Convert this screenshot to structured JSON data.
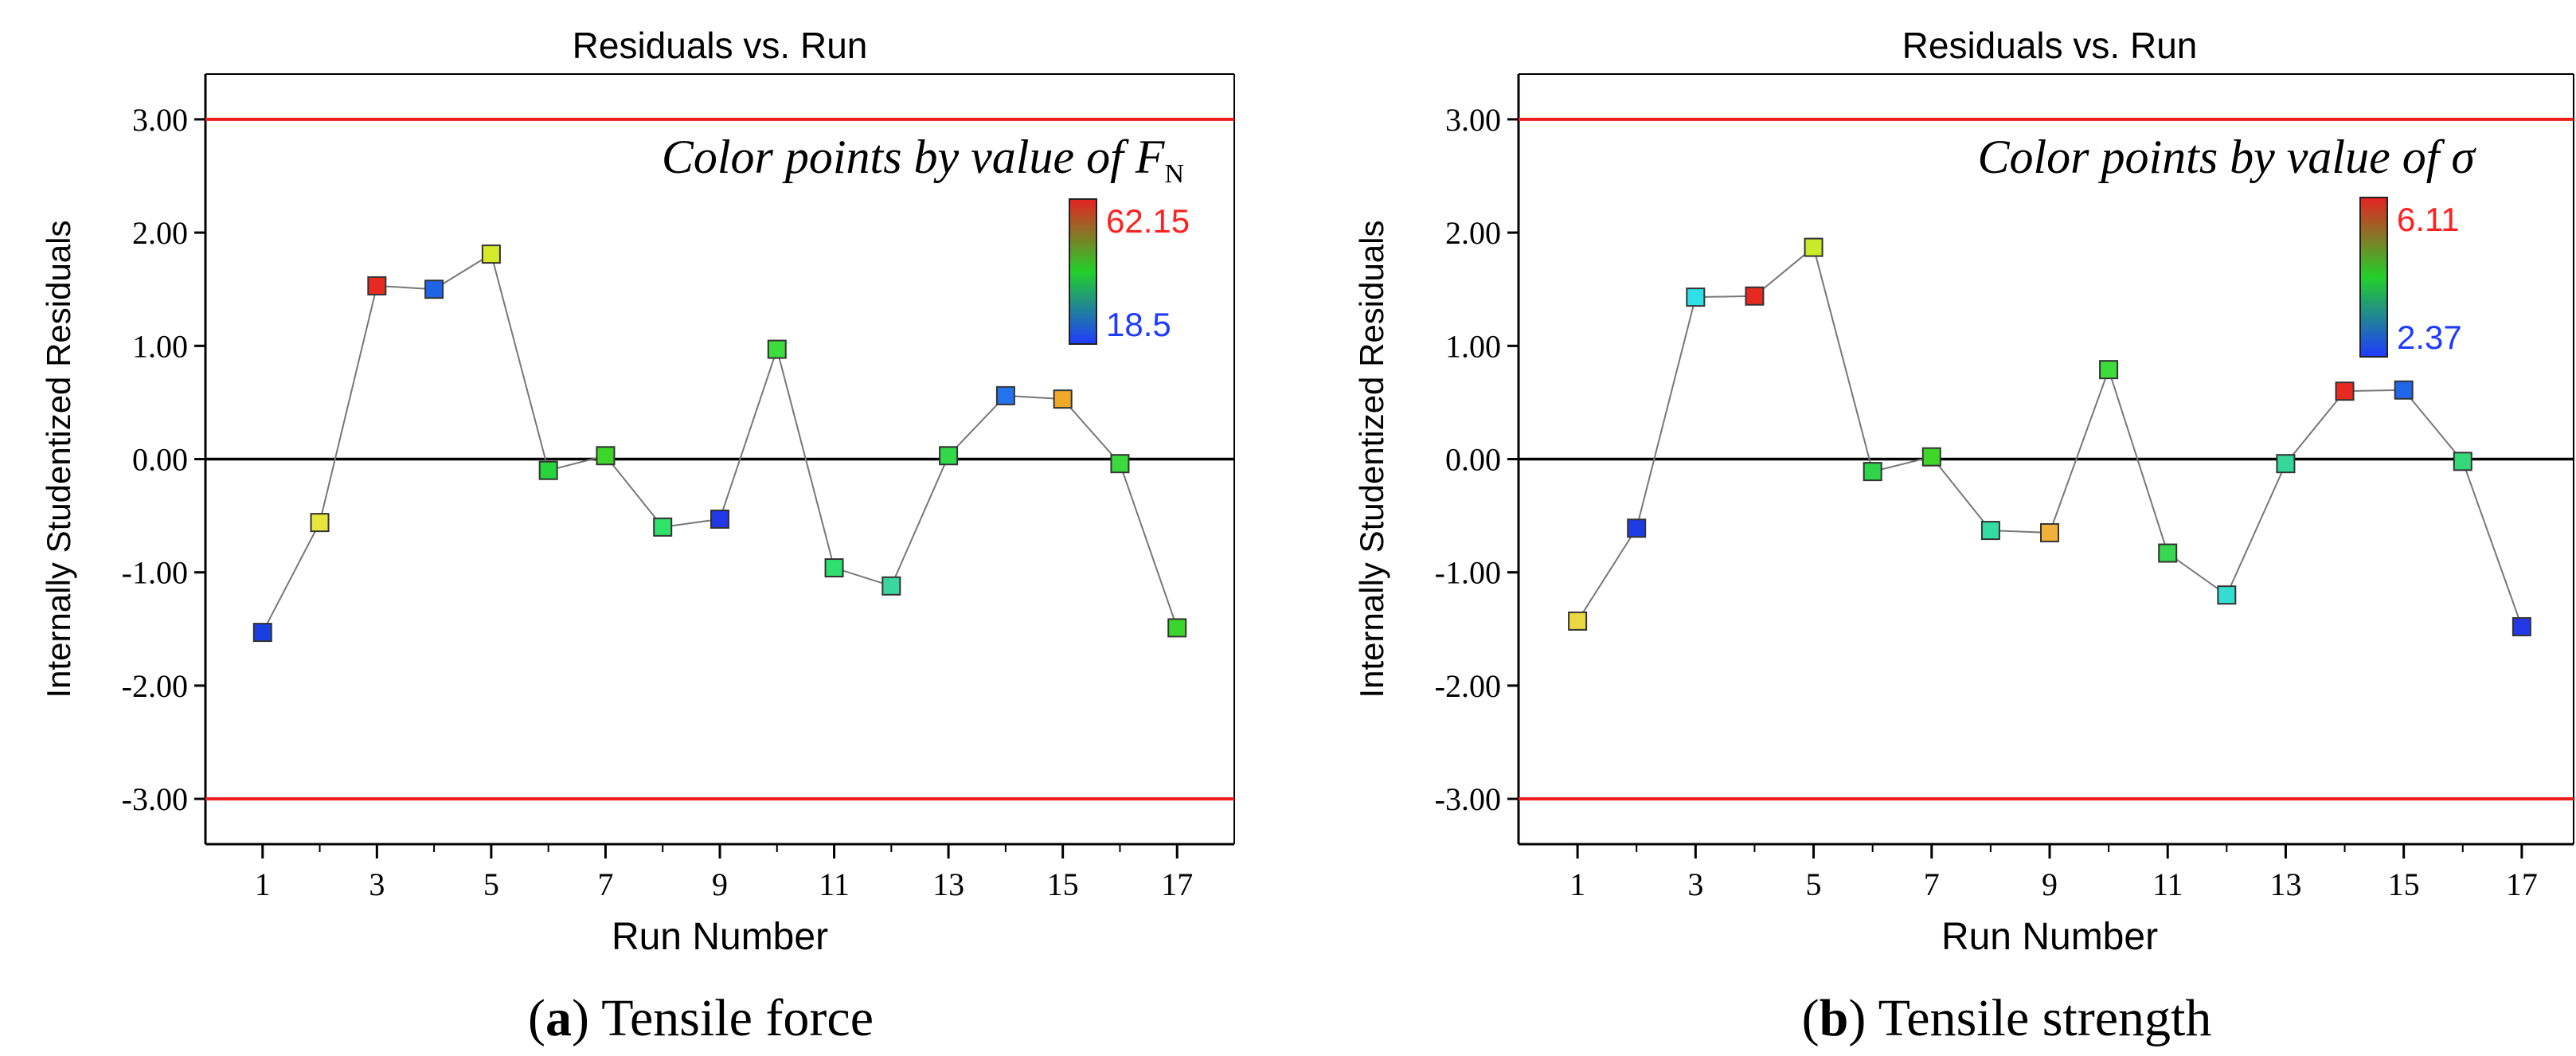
{
  "colors": {
    "limit_line": "#ee1c1c",
    "zero_line": "#000000",
    "connector": "#777777",
    "axis": "#000000",
    "scale_high_label": "#ff2020",
    "scale_low_label": "#1f3bff",
    "caption_text": "#000000"
  },
  "chart_data": [
    {
      "type": "scatter",
      "title": "Residuals vs. Run",
      "xlabel": "Run Number",
      "ylabel": "Internally Studentized Residuals",
      "xlim": [
        0,
        18
      ],
      "ylim": [
        -3.4,
        3.4
      ],
      "x_ticks": [
        1,
        3,
        5,
        7,
        9,
        11,
        13,
        15,
        17
      ],
      "x_minor_ticks": [
        2,
        4,
        6,
        8,
        10,
        12,
        14,
        16
      ],
      "y_ticks": [
        3,
        2,
        1,
        0,
        -1,
        -2,
        -3
      ],
      "y_tick_labels": [
        "3.00",
        "2.00",
        "1.00",
        "0.00",
        "-1.00",
        "-2.00",
        "-3.00"
      ],
      "limit_lines": [
        3.0,
        -3.0
      ],
      "zero_line": 0.0,
      "annotation": {
        "prefix": "Color points by value of ",
        "symbol": "F",
        "subscript": "N"
      },
      "color_scale": {
        "high_label": "62.15",
        "low_label": "18.5",
        "min": 18.5,
        "max": 62.15
      },
      "series": [
        {
          "name": "Residuals",
          "x": [
            1,
            2,
            3,
            4,
            5,
            6,
            7,
            8,
            9,
            10,
            11,
            12,
            13,
            14,
            15,
            16,
            17
          ],
          "y": [
            -1.53,
            -0.56,
            1.53,
            1.5,
            1.81,
            -0.1,
            0.03,
            -0.6,
            -0.53,
            0.97,
            -0.96,
            -1.12,
            0.03,
            0.56,
            0.53,
            -0.04,
            -1.49
          ],
          "colors": [
            "#1a3fe0",
            "#e6e63c",
            "#e62a22",
            "#1f63e6",
            "#d5ea2a",
            "#26d43c",
            "#3ed628",
            "#2ee26a",
            "#2238e6",
            "#3cdc3c",
            "#2fe06f",
            "#3ad6a0",
            "#32da4a",
            "#2472ec",
            "#f0aa28",
            "#3bdb40",
            "#3ad62c"
          ]
        }
      ],
      "caption": {
        "letter": "a",
        "text": "Tensile force"
      }
    },
    {
      "type": "scatter",
      "title": "Residuals vs. Run",
      "xlabel": "Run Number",
      "ylabel": "Internally Studentized Residuals",
      "xlim": [
        0,
        18
      ],
      "ylim": [
        -3.4,
        3.4
      ],
      "x_ticks": [
        1,
        3,
        5,
        7,
        9,
        11,
        13,
        15,
        17
      ],
      "x_minor_ticks": [
        2,
        4,
        6,
        8,
        10,
        12,
        14,
        16
      ],
      "y_ticks": [
        3,
        2,
        1,
        0,
        -1,
        -2,
        -3
      ],
      "y_tick_labels": [
        "3.00",
        "2.00",
        "1.00",
        "0.00",
        "-1.00",
        "-2.00",
        "-3.00"
      ],
      "limit_lines": [
        3.0,
        -3.0
      ],
      "zero_line": 0.0,
      "annotation": {
        "prefix": "Color points by value of ",
        "symbol": "σ",
        "subscript": ""
      },
      "color_scale": {
        "high_label": "6.11",
        "low_label": "2.37",
        "min": 2.37,
        "max": 6.11
      },
      "series": [
        {
          "name": "Residuals",
          "x": [
            1,
            2,
            3,
            4,
            5,
            6,
            7,
            8,
            9,
            10,
            11,
            12,
            13,
            14,
            15,
            16,
            17
          ],
          "y": [
            -1.43,
            -0.61,
            1.43,
            1.44,
            1.87,
            -0.11,
            0.02,
            -0.63,
            -0.65,
            0.79,
            -0.83,
            -1.2,
            -0.04,
            0.6,
            0.61,
            -0.02,
            -1.48
          ],
          "colors": [
            "#ecd840",
            "#1e3ce4",
            "#2ee0e8",
            "#e62a22",
            "#c9ea2a",
            "#2ed44a",
            "#3ed628",
            "#34dca4",
            "#f0b03a",
            "#3cdc3c",
            "#36d850",
            "#34dcd2",
            "#34d89a",
            "#e62a22",
            "#1f66e8",
            "#34d87a",
            "#2238e6"
          ]
        }
      ],
      "caption": {
        "letter": "b",
        "text": "Tensile strength"
      }
    }
  ]
}
